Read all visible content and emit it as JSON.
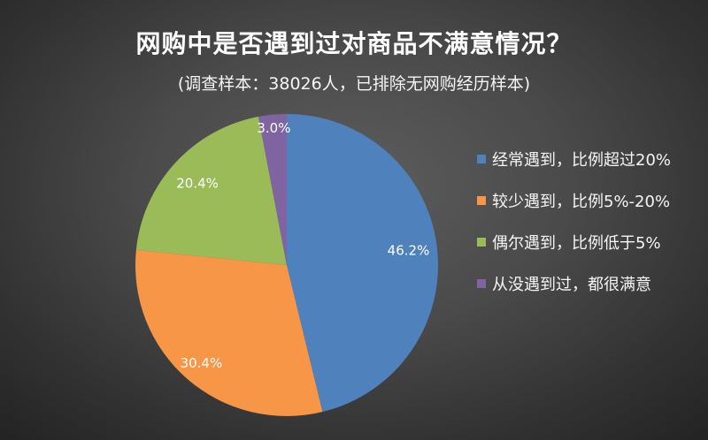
{
  "chart_data": {
    "type": "pie",
    "title": "网购中是否遇到过对商品不满意情况？",
    "subtitle": "(调查样本：38026人，已排除无网购经历样本)",
    "categories": [
      "经常遇到，比例超过20%",
      "较少遇到，比例5%-20%",
      "偶尔遇到，比例低于5%",
      "从没遇到过，都很满意"
    ],
    "values": [
      46.2,
      30.4,
      20.4,
      3.0
    ],
    "data_labels": [
      "46.2%",
      "30.4%",
      "20.4%",
      "3.0%"
    ],
    "colors": [
      "#4F81BD",
      "#F79646",
      "#9BBB59",
      "#8064A2"
    ],
    "legend": "right"
  }
}
